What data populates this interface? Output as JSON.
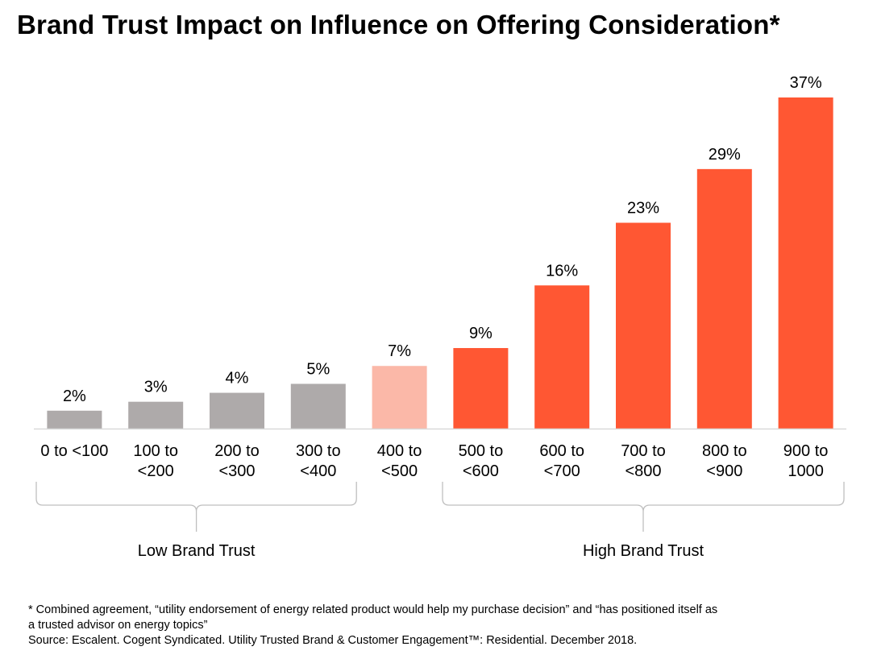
{
  "title": "Brand Trust Impact on Influence on Offering Consideration*",
  "chart_data": {
    "type": "bar",
    "title": "Brand Trust Impact on Influence on Offering Consideration*",
    "xlabel": "",
    "ylabel": "",
    "ylim": [
      0,
      40
    ],
    "grid": false,
    "categories": [
      [
        "0 to <100"
      ],
      [
        "100 to",
        "<200"
      ],
      [
        "200 to",
        "<300"
      ],
      [
        "300 to",
        "<400"
      ],
      [
        "400 to",
        "<500"
      ],
      [
        "500 to",
        "<600"
      ],
      [
        "600 to",
        "<700"
      ],
      [
        "700 to",
        "<800"
      ],
      [
        "800 to",
        "<900"
      ],
      [
        "900 to",
        "1000"
      ]
    ],
    "values": [
      2,
      3,
      4,
      5,
      7,
      9,
      16,
      23,
      29,
      37
    ],
    "value_labels": [
      "2%",
      "3%",
      "4%",
      "5%",
      "7%",
      "9%",
      "16%",
      "23%",
      "29%",
      "37%"
    ],
    "bar_colors": [
      "#aeaaaa",
      "#aeaaaa",
      "#aeaaaa",
      "#aeaaaa",
      "#fbb8a8",
      "#ff5733",
      "#ff5733",
      "#ff5733",
      "#ff5733",
      "#ff5733"
    ],
    "groups": [
      {
        "label": "Low Brand Trust",
        "from": 0,
        "to": 3
      },
      {
        "label": "High Brand Trust",
        "from": 5,
        "to": 9
      }
    ]
  },
  "footnote": {
    "line1": "* Combined agreement, “utility endorsement of energy related product would help my purchase decision” and “has positioned itself as",
    "line2": "a trusted advisor on energy topics”",
    "source": "Source: Escalent. Cogent Syndicated. Utility Trusted Brand & Customer Engagement™: Residential. December 2018."
  },
  "colors": {
    "low_trust": "#aeaaaa",
    "neutral": "#fbb8a8",
    "high_trust": "#ff5733",
    "bracket": "#bfbfbf",
    "axis": "#d9d9d9"
  }
}
